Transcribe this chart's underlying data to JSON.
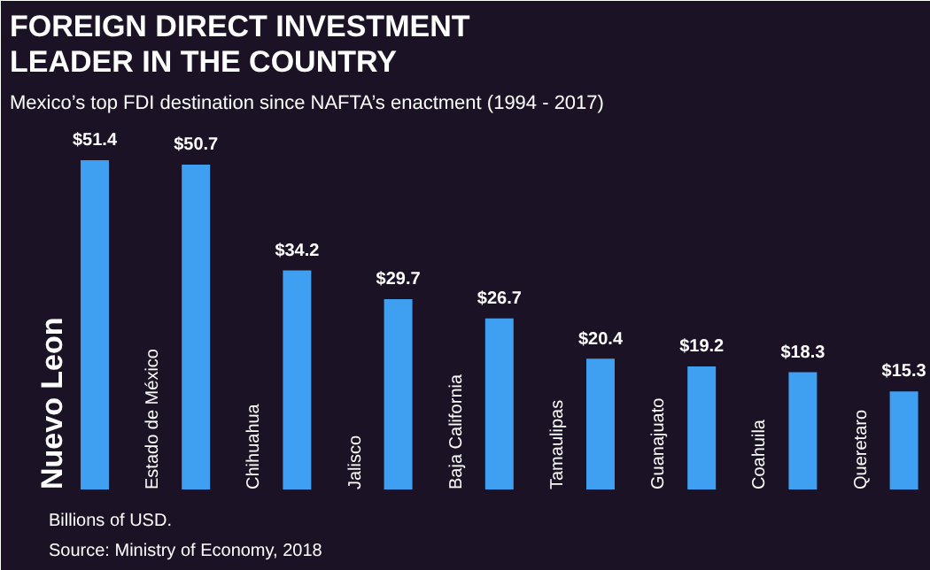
{
  "chart_data": {
    "type": "bar",
    "title": "FOREIGN DIRECT INVESTMENT\nLEADER IN THE COUNTRY",
    "subtitle": "Mexico’s top FDI destination since NAFTA’s enactment (1994 - 2017)",
    "categories": [
      "Nuevo Leon",
      "Estado de México",
      "Chihuahua",
      "Jalisco",
      "Baja California",
      "Tamaulipas",
      "Guanajuato",
      "Coahuila",
      "Queretaro"
    ],
    "values": [
      51.4,
      50.7,
      34.2,
      29.7,
      26.7,
      20.4,
      19.2,
      18.3,
      15.3
    ],
    "color": "#3f9ff0",
    "value_labels": [
      "$51.4",
      "$50.7",
      "$34.2",
      "$29.7",
      "$26.7",
      "$20.4",
      "$19.2",
      "$18.3",
      "$15.3"
    ],
    "annotations": [
      "Billions of USD.",
      "Source: Ministry of Economy, 2018"
    ],
    "grid": false
  }
}
